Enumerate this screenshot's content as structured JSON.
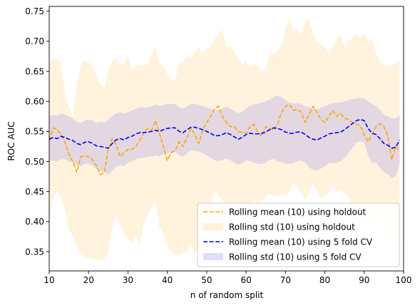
{
  "chart_data": {
    "type": "line",
    "xlabel": "n of random split",
    "ylabel": "ROC AUC",
    "xlim": [
      10,
      100
    ],
    "ylim": [
      0.318,
      0.758
    ],
    "x_ticks": [
      10,
      20,
      30,
      40,
      50,
      60,
      70,
      80,
      90,
      100
    ],
    "y_ticks": [
      0.35,
      0.4,
      0.45,
      0.5,
      0.55,
      0.6,
      0.65,
      0.7,
      0.75
    ],
    "x": [
      10,
      11,
      12,
      13,
      14,
      15,
      16,
      17,
      18,
      19,
      20,
      21,
      22,
      23,
      24,
      25,
      26,
      27,
      28,
      29,
      30,
      31,
      32,
      33,
      34,
      35,
      36,
      37,
      38,
      39,
      40,
      41,
      42,
      43,
      44,
      45,
      46,
      47,
      48,
      49,
      50,
      51,
      52,
      53,
      54,
      55,
      56,
      57,
      58,
      59,
      60,
      61,
      62,
      63,
      64,
      65,
      66,
      67,
      68,
      69,
      70,
      71,
      72,
      73,
      74,
      75,
      76,
      77,
      78,
      79,
      80,
      81,
      82,
      83,
      84,
      85,
      86,
      87,
      88,
      89,
      90,
      91,
      92,
      93,
      94,
      95,
      96,
      97,
      98,
      99
    ],
    "series": [
      {
        "name": "Rolling mean (10) using holdout",
        "kind": "line",
        "style": "dashed",
        "color": "#ffa500",
        "values": [
          0.535,
          0.556,
          0.553,
          0.545,
          0.532,
          0.512,
          0.5,
          0.482,
          0.508,
          0.51,
          0.508,
          0.503,
          0.493,
          0.478,
          0.482,
          0.52,
          0.538,
          0.528,
          0.508,
          0.515,
          0.52,
          0.52,
          0.525,
          0.535,
          0.548,
          0.555,
          0.552,
          0.568,
          0.547,
          0.525,
          0.502,
          0.515,
          0.518,
          0.533,
          0.525,
          0.54,
          0.555,
          0.545,
          0.53,
          0.553,
          0.565,
          0.575,
          0.588,
          0.592,
          0.575,
          0.565,
          0.558,
          0.558,
          0.55,
          0.548,
          0.547,
          0.558,
          0.562,
          0.548,
          0.542,
          0.558,
          0.555,
          0.552,
          0.562,
          0.582,
          0.592,
          0.595,
          0.585,
          0.587,
          0.582,
          0.565,
          0.578,
          0.592,
          0.582,
          0.57,
          0.565,
          0.575,
          0.585,
          0.575,
          0.58,
          0.572,
          0.57,
          0.565,
          0.562,
          0.56,
          0.545,
          0.533,
          0.545,
          0.558,
          0.563,
          0.558,
          0.542,
          0.503,
          0.525,
          0.518
        ]
      },
      {
        "name": "Rolling std (10) using holdout",
        "kind": "band",
        "color": "#ffa500",
        "upper": [
          0.665,
          0.672,
          0.67,
          0.665,
          0.615,
          0.59,
          0.575,
          0.628,
          0.66,
          0.668,
          0.665,
          0.66,
          0.642,
          0.63,
          0.622,
          0.65,
          0.668,
          0.672,
          0.662,
          0.662,
          0.68,
          0.652,
          0.66,
          0.66,
          0.662,
          0.66,
          0.68,
          0.69,
          0.662,
          0.66,
          0.645,
          0.636,
          0.635,
          0.662,
          0.665,
          0.675,
          0.67,
          0.684,
          0.69,
          0.68,
          0.688,
          0.69,
          0.704,
          0.712,
          0.72,
          0.69,
          0.692,
          0.682,
          0.672,
          0.662,
          0.668,
          0.656,
          0.661,
          0.66,
          0.65,
          0.655,
          0.683,
          0.679,
          0.684,
          0.695,
          0.72,
          0.74,
          0.715,
          0.72,
          0.71,
          0.735,
          0.738,
          0.712,
          0.7,
          0.695,
          0.69,
          0.68,
          0.69,
          0.705,
          0.71,
          0.69,
          0.702,
          0.705,
          0.712,
          0.705,
          0.712,
          0.7,
          0.705,
          0.68,
          0.665,
          0.66,
          0.658,
          0.66,
          0.665,
          0.668
        ],
        "lower": [
          0.4,
          0.44,
          0.45,
          0.44,
          0.42,
          0.388,
          0.375,
          0.36,
          0.345,
          0.342,
          0.34,
          0.338,
          0.337,
          0.335,
          0.338,
          0.348,
          0.39,
          0.41,
          0.395,
          0.378,
          0.372,
          0.365,
          0.375,
          0.36,
          0.395,
          0.41,
          0.425,
          0.435,
          0.39,
          0.38,
          0.36,
          0.35,
          0.345,
          0.343,
          0.348,
          0.35,
          0.36,
          0.348,
          0.36,
          0.378,
          0.408,
          0.425,
          0.453,
          0.442,
          0.435,
          0.43,
          0.42,
          0.425,
          0.432,
          0.43,
          0.425,
          0.43,
          0.435,
          0.43,
          0.435,
          0.443,
          0.445,
          0.443,
          0.442,
          0.445,
          0.445,
          0.448,
          0.465,
          0.455,
          0.448,
          0.436,
          0.448,
          0.462,
          0.45,
          0.44,
          0.445,
          0.448,
          0.46,
          0.448,
          0.455,
          0.445,
          0.442,
          0.42,
          0.418,
          0.42,
          0.4,
          0.385,
          0.395,
          0.41,
          0.42,
          0.398,
          0.372,
          0.35,
          0.358,
          0.362
        ]
      },
      {
        "name": "Rolling mean (10) using 5 fold CV",
        "kind": "line",
        "style": "dashed",
        "color": "#0000ff",
        "values": [
          0.537,
          0.54,
          0.538,
          0.542,
          0.54,
          0.537,
          0.535,
          0.53,
          0.528,
          0.532,
          0.533,
          0.53,
          0.526,
          0.525,
          0.524,
          0.522,
          0.53,
          0.536,
          0.538,
          0.536,
          0.54,
          0.542,
          0.546,
          0.548,
          0.548,
          0.549,
          0.55,
          0.552,
          0.55,
          0.553,
          0.555,
          0.556,
          0.556,
          0.55,
          0.548,
          0.553,
          0.557,
          0.557,
          0.555,
          0.553,
          0.55,
          0.547,
          0.543,
          0.543,
          0.545,
          0.548,
          0.545,
          0.541,
          0.537,
          0.54,
          0.545,
          0.547,
          0.546,
          0.546,
          0.547,
          0.549,
          0.553,
          0.556,
          0.555,
          0.553,
          0.549,
          0.547,
          0.547,
          0.549,
          0.549,
          0.545,
          0.54,
          0.537,
          0.536,
          0.539,
          0.542,
          0.546,
          0.547,
          0.548,
          0.549,
          0.553,
          0.558,
          0.563,
          0.568,
          0.57,
          0.568,
          0.555,
          0.547,
          0.545,
          0.538,
          0.53,
          0.527,
          0.522,
          0.524,
          0.536
        ]
      },
      {
        "name": "Rolling std (10) using 5 fold CV",
        "kind": "band",
        "color": "#0000ff",
        "upper": [
          0.575,
          0.578,
          0.576,
          0.58,
          0.578,
          0.575,
          0.572,
          0.566,
          0.564,
          0.568,
          0.57,
          0.568,
          0.564,
          0.566,
          0.565,
          0.57,
          0.575,
          0.58,
          0.582,
          0.58,
          0.582,
          0.585,
          0.588,
          0.59,
          0.59,
          0.59,
          0.592,
          0.595,
          0.592,
          0.594,
          0.596,
          0.596,
          0.596,
          0.59,
          0.588,
          0.592,
          0.596,
          0.596,
          0.594,
          0.592,
          0.59,
          0.588,
          0.584,
          0.585,
          0.588,
          0.591,
          0.588,
          0.584,
          0.58,
          0.583,
          0.588,
          0.593,
          0.595,
          0.596,
          0.598,
          0.6,
          0.603,
          0.608,
          0.61,
          0.607,
          0.602,
          0.598,
          0.597,
          0.597,
          0.596,
          0.592,
          0.59,
          0.588,
          0.587,
          0.59,
          0.592,
          0.595,
          0.597,
          0.598,
          0.598,
          0.6,
          0.602,
          0.604,
          0.605,
          0.606,
          0.605,
          0.6,
          0.596,
          0.592,
          0.586,
          0.578,
          0.575,
          0.572,
          0.572,
          0.577
        ],
        "lower": [
          0.5,
          0.502,
          0.5,
          0.504,
          0.503,
          0.5,
          0.498,
          0.494,
          0.492,
          0.496,
          0.497,
          0.493,
          0.488,
          0.484,
          0.483,
          0.477,
          0.485,
          0.491,
          0.494,
          0.492,
          0.498,
          0.5,
          0.504,
          0.506,
          0.506,
          0.508,
          0.508,
          0.51,
          0.508,
          0.512,
          0.514,
          0.516,
          0.516,
          0.51,
          0.508,
          0.514,
          0.518,
          0.518,
          0.516,
          0.514,
          0.51,
          0.506,
          0.502,
          0.501,
          0.502,
          0.505,
          0.502,
          0.498,
          0.494,
          0.497,
          0.502,
          0.501,
          0.498,
          0.496,
          0.496,
          0.498,
          0.503,
          0.504,
          0.5,
          0.499,
          0.496,
          0.496,
          0.497,
          0.501,
          0.502,
          0.498,
          0.49,
          0.486,
          0.485,
          0.488,
          0.492,
          0.497,
          0.497,
          0.498,
          0.5,
          0.506,
          0.514,
          0.522,
          0.531,
          0.534,
          0.531,
          0.51,
          0.498,
          0.498,
          0.49,
          0.482,
          0.479,
          0.472,
          0.476,
          0.495
        ]
      }
    ],
    "legend": {
      "placement": "lower-right",
      "entries": [
        {
          "label": "Rolling mean (10) using holdout",
          "kind": "line",
          "color": "#ffa500"
        },
        {
          "label": "Rolling std (10) using holdout",
          "kind": "band",
          "color": "#ffa500"
        },
        {
          "label": "Rolling mean (10) using 5 fold CV",
          "kind": "line",
          "color": "#0000ff"
        },
        {
          "label": "Rolling std (10) using 5 fold CV",
          "kind": "band",
          "color": "#0000ff"
        }
      ]
    },
    "grid": false
  }
}
